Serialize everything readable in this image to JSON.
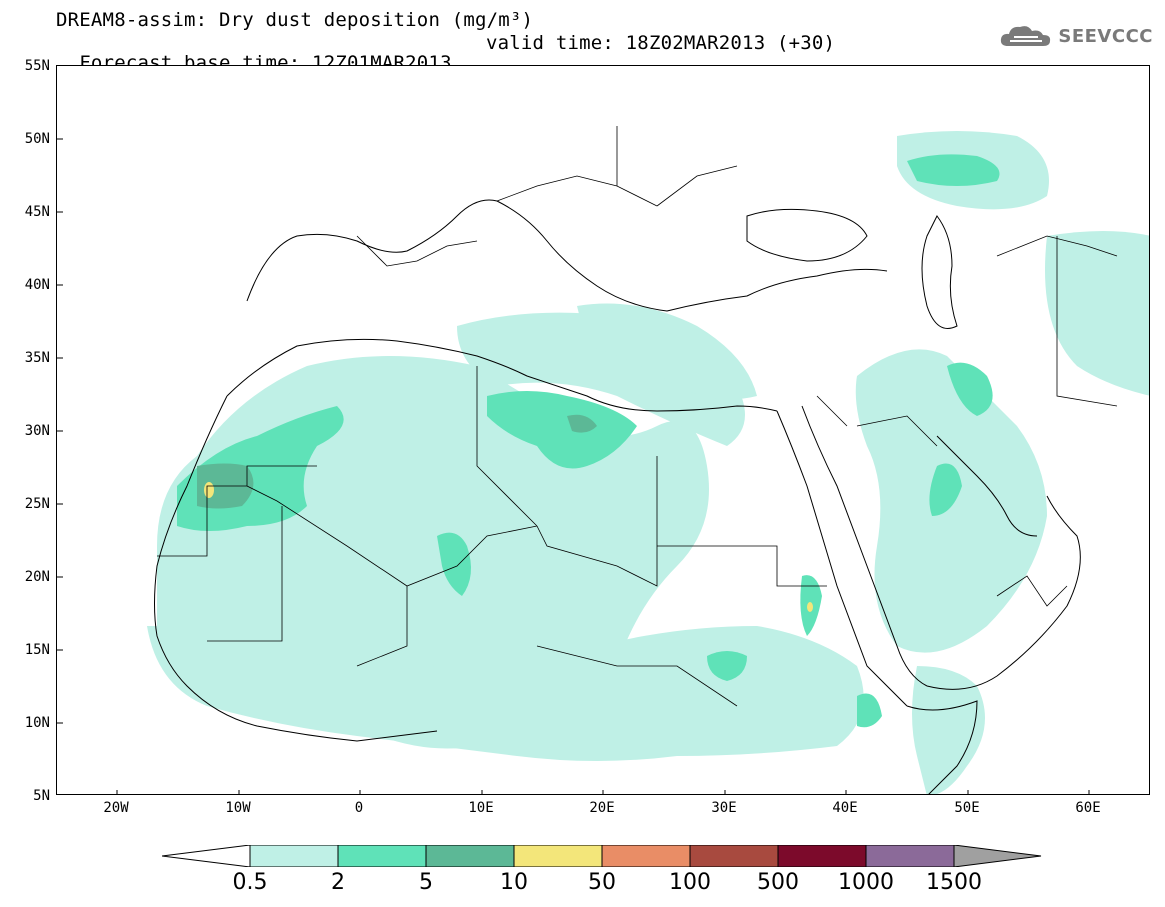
{
  "header": {
    "title_line1": "DREAM8-assim: Dry dust deposition (mg/m³)",
    "base_time": "Forecast base time: 12Z01MAR2013",
    "valid_time": "valid time: 18Z02MAR2013 (+30)"
  },
  "logo": {
    "text": "SEEVCCC",
    "icon": "cloud-icon",
    "color": "#7a7a7a"
  },
  "map": {
    "projection": "lat-lon",
    "lon_range": [
      -25,
      65
    ],
    "lat_range": [
      5,
      55
    ],
    "lat_labels": [
      "55N",
      "50N",
      "45N",
      "40N",
      "35N",
      "30N",
      "25N",
      "20N",
      "15N",
      "10N",
      "5N"
    ],
    "lon_labels": [
      "20W",
      "10W",
      "0",
      "10E",
      "20E",
      "30E",
      "40E",
      "50E",
      "60E"
    ]
  },
  "colorbar": {
    "levels": [
      "0.5",
      "2",
      "5",
      "10",
      "50",
      "100",
      "500",
      "1000",
      "1500"
    ],
    "colors": [
      "#bff0e6",
      "#5fe2b8",
      "#5cb896",
      "#f3e67a",
      "#e98d66",
      "#a84a3f",
      "#7c0a2b",
      "#8b6a99",
      "#a0a0a0"
    ],
    "under_color": "#ffffff"
  }
}
